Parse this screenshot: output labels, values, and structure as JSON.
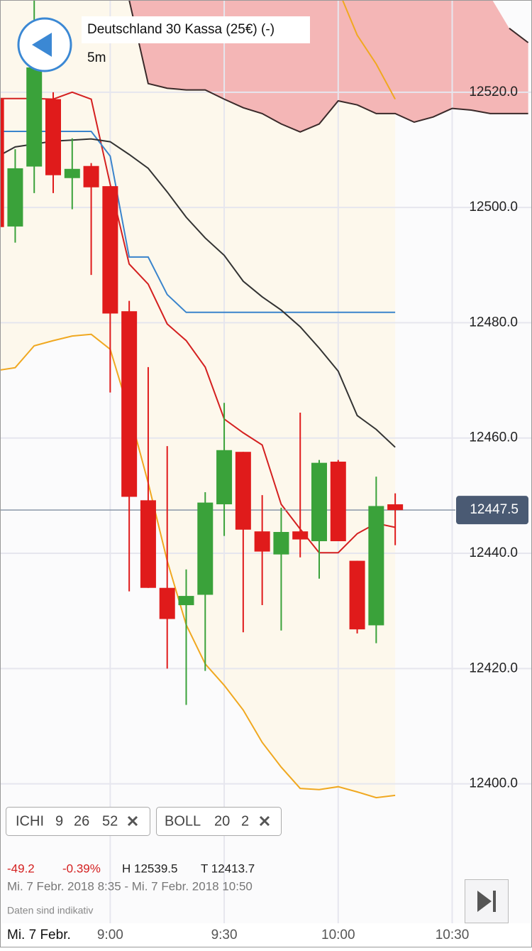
{
  "header": {
    "title": "Deutschland 30 Kassa (25€) (-)",
    "timeframe": "5m"
  },
  "chart_data": {
    "type": "candlestick",
    "x": [
      "8:30",
      "8:35",
      "8:40",
      "8:45",
      "8:50",
      "8:55",
      "9:00",
      "9:05",
      "9:10",
      "9:15",
      "9:20",
      "9:25",
      "9:30",
      "9:35",
      "9:40",
      "9:45",
      "9:50",
      "9:55",
      "10:00",
      "10:05",
      "10:10",
      "10:15",
      "10:20",
      "10:25",
      "10:30",
      "10:35",
      "10:40",
      "10:45",
      "10:50"
    ],
    "open": [
      12518.8,
      12496.7,
      12507.1,
      12518.8,
      12505.1,
      12507.2,
      12503.7,
      12482.0,
      12449.2,
      12434.0,
      12431.0,
      12432.8,
      12448.5,
      12457.6,
      12443.8,
      12439.8,
      12443.8,
      12442.1,
      12455.9,
      12438.7,
      12427.5,
      12448.5,
      null,
      null,
      null,
      null,
      null,
      null,
      null
    ],
    "high": [
      12518.8,
      12510.1,
      12539.5,
      12520.0,
      12512.0,
      12507.7,
      12503.7,
      12483.8,
      12472.3,
      12458.6,
      12437.2,
      12450.6,
      12466.1,
      12457.6,
      12450.1,
      12447.9,
      12464.4,
      12456.2,
      12456.2,
      12438.7,
      12453.3,
      12450.4,
      null,
      null,
      null,
      null,
      null,
      null,
      null
    ],
    "low": [
      12496.6,
      12493.9,
      12502.5,
      12502.5,
      12499.7,
      12488.3,
      12467.9,
      12433.4,
      12434.0,
      12420.0,
      12413.7,
      12419.6,
      12443.0,
      12426.3,
      12431.0,
      12426.6,
      12439.3,
      12435.6,
      12442.1,
      12426.1,
      12424.4,
      12441.4,
      null,
      null,
      null,
      null,
      null,
      null,
      null
    ],
    "close": [
      12496.6,
      12506.8,
      12524.3,
      12505.6,
      12506.7,
      12503.5,
      12481.6,
      12449.8,
      12434.0,
      12428.6,
      12432.6,
      12448.8,
      12457.9,
      12444.1,
      12440.3,
      12443.7,
      12442.4,
      12455.7,
      12442.1,
      12426.8,
      12448.2,
      12447.5,
      null,
      null,
      null,
      null,
      null,
      null,
      null
    ],
    "up_color": "#3aa23a",
    "down_color": "#e01b1b",
    "lines": [
      {
        "color": "#d42020",
        "values": [
          12518.9,
          12518.9,
          12518.9,
          12518.8,
          12520.0,
          12518.8,
          12504.0,
          12490.2,
          12486.7,
          12479.8,
          12476.9,
          12472.3,
          12463.3,
          12460.9,
          12458.8,
          12448.5,
          12444.2,
          12440.1,
          12440.1,
          12443.4,
          12445.2,
          12444.5,
          null,
          null,
          null,
          null,
          null,
          null,
          null
        ]
      },
      {
        "color": "#3a84cc",
        "values": [
          12513.2,
          12513.2,
          12513.2,
          12513.2,
          12513.2,
          12513.2,
          12508.9,
          12491.4,
          12491.4,
          12484.9,
          12481.8,
          12481.8,
          12481.8,
          12481.8,
          12481.8,
          12481.8,
          12481.8,
          12481.8,
          12481.8,
          12481.8,
          12481.8,
          12481.8,
          null,
          null,
          null,
          null,
          null,
          null,
          null
        ]
      },
      {
        "color": "#333333",
        "values": [
          12508.7,
          12510.5,
          12511.0,
          12511.5,
          12511.7,
          12511.9,
          12511.4,
          12509.2,
          12506.8,
          12502.7,
          12498.3,
          12494.7,
          12491.7,
          12487.2,
          12484.5,
          12482.2,
          12479.3,
          12475.6,
          12471.6,
          12463.9,
          12461.5,
          12458.4,
          null,
          null,
          null,
          null,
          null,
          null,
          null
        ]
      }
    ],
    "bollinger": {
      "color": "#f0a820",
      "fill": "#fdf8ec",
      "upper": [
        null,
        null,
        null,
        null,
        null,
        null,
        null,
        null,
        null,
        null,
        null,
        null,
        null,
        null,
        null,
        null,
        null,
        null,
        12537.8,
        12529.9,
        12524.9,
        12518.8,
        null,
        null,
        null,
        null,
        null,
        null,
        null
      ],
      "lower": [
        12471.7,
        12472.2,
        12476.0,
        12476.9,
        12477.7,
        12478.0,
        12475.4,
        12464.5,
        12452.2,
        12438.7,
        12427.6,
        12420.8,
        12417.1,
        12412.8,
        12407.2,
        12402.9,
        12399.2,
        12399.0,
        12399.5,
        12398.6,
        12397.6,
        12398.0,
        null,
        null,
        null,
        null,
        null,
        null,
        null
      ]
    },
    "cloud": {
      "fill": "#f4b6b6",
      "stroke": "#3a2a2a",
      "lower": [
        null,
        null,
        null,
        null,
        null,
        null,
        null,
        12536.0,
        12521.5,
        12520.7,
        12520.4,
        12520.4,
        12518.8,
        12517.3,
        12516.3,
        12514.5,
        12513.1,
        12514.5,
        12518.5,
        12517.8,
        12516.3,
        12516.3,
        12514.8,
        12515.7,
        12517.2,
        12516.9,
        12516.3,
        12516.3,
        12516.3
      ],
      "upper": [
        null,
        null,
        null,
        null,
        null,
        null,
        null,
        null,
        null,
        null,
        null,
        null,
        null,
        null,
        null,
        null,
        null,
        null,
        null,
        null,
        null,
        null,
        null,
        null,
        null,
        null,
        null,
        12531.1,
        12528.6
      ]
    },
    "last_price": {
      "value": 12447.5,
      "label": "12447.5"
    },
    "xlim": [
      "8:31",
      "10:51"
    ],
    "xticks": [
      "9:00",
      "9:30",
      "10:00",
      "10:30"
    ],
    "date_label": "Mi. 7 Febr.",
    "ylim": [
      12375.8,
      12536.0
    ],
    "yticks": [
      {
        "value": 12400,
        "label": "12400.0"
      },
      {
        "value": 12420,
        "label": "12420.0"
      },
      {
        "value": 12440,
        "label": "12440.0"
      },
      {
        "value": 12460,
        "label": "12460.0"
      },
      {
        "value": 12480,
        "label": "12480.0"
      },
      {
        "value": 12500,
        "label": "12500.0"
      },
      {
        "value": 12520,
        "label": "12520.0"
      }
    ],
    "grid": true
  },
  "indicators": [
    {
      "name": "ICHI",
      "params": [
        9,
        26,
        52
      ]
    },
    {
      "name": "BOLL",
      "params": [
        20,
        2
      ]
    }
  ],
  "stats": {
    "change": "-49.2",
    "change_pct": "-0.39%",
    "high": "H 12539.5",
    "low": "T 12413.7",
    "range": "Mi. 7 Febr. 2018 8:35 - Mi. 7 Febr. 2018 10:50"
  },
  "footer": {
    "note": "Daten sind indikativ"
  }
}
